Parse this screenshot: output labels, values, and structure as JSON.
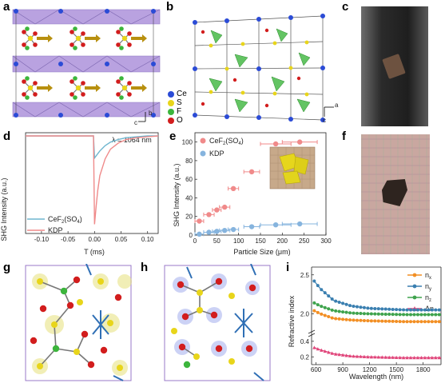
{
  "panel_labels": {
    "a": "a",
    "b": "b",
    "c": "c",
    "d": "d",
    "e": "e",
    "f": "f",
    "g": "g",
    "h": "h",
    "i": "i"
  },
  "axes_a": {
    "b": "b",
    "c": "c"
  },
  "axes_b": {
    "a": "a",
    "c": "c"
  },
  "legend_b": [
    {
      "label": "Ce",
      "color": "#2b4bd6"
    },
    {
      "label": "S",
      "color": "#e8d51a"
    },
    {
      "label": "F",
      "color": "#3cb53c"
    },
    {
      "label": "O",
      "color": "#d21d1d"
    }
  ],
  "colors": {
    "ce": "#2b4bd6",
    "s": "#e8d51a",
    "f": "#3cb53c",
    "o": "#d21d1d",
    "polyhedra": "#b9a2e0",
    "arrow": "#b8900f",
    "cef2": "#6fb6cf",
    "kdp": "#ef8a8a",
    "pink_e": "#f08a8a",
    "blue_e": "#86b4de"
  },
  "chart_data": [
    {
      "type": "line",
      "panel": "d",
      "xlabel": "T (ms)",
      "ylabel": "SHG Intensity (a.u.)",
      "xlim": [
        -0.13,
        0.12
      ],
      "xticks": [
        -0.1,
        -0.05,
        0.0,
        0.05,
        0.1
      ],
      "xtick_labels": [
        "-0.10",
        "-0.05",
        "0.00",
        "0.05",
        "0.10"
      ],
      "annotation": "λ = 1064 nm",
      "series": [
        {
          "name": "CeF2(SO4)",
          "name_main": "CeF",
          "name_sub": "2",
          "name_tail": "(SO",
          "name_sub2": "4",
          "name_end": ")",
          "color": "#6fb6cf",
          "x": [
            -0.13,
            -0.002,
            0.0,
            0.005,
            0.01,
            0.02,
            0.03,
            0.045,
            0.06,
            0.08,
            0.1,
            0.12
          ],
          "y": [
            0.0,
            0.0,
            -0.25,
            -0.21,
            -0.17,
            -0.11,
            -0.07,
            -0.04,
            -0.02,
            -0.01,
            0.0,
            0.0
          ]
        },
        {
          "name": "KDP",
          "color": "#ef8a8a",
          "x": [
            -0.13,
            -0.002,
            0.0,
            0.003,
            0.006,
            0.01,
            0.02,
            0.03,
            0.045,
            0.06,
            0.08,
            0.1,
            0.12
          ],
          "y": [
            0.0,
            0.0,
            -1.0,
            -0.8,
            -0.62,
            -0.45,
            -0.26,
            -0.15,
            -0.08,
            -0.04,
            -0.02,
            -0.01,
            0.0
          ]
        }
      ]
    },
    {
      "type": "scatter",
      "panel": "e",
      "xlabel": "Particle Size (μm)",
      "ylabel": "SHG Intensity (a.u.)",
      "xlim": [
        0,
        300
      ],
      "ylim": [
        0,
        110
      ],
      "xticks": [
        0,
        50,
        100,
        150,
        200,
        250,
        300
      ],
      "yticks": [
        0,
        20,
        40,
        60,
        80,
        100
      ],
      "series": [
        {
          "name": "CeF2(SO4)",
          "name_main": "CeF",
          "name_sub": "2",
          "name_tail": "(SO",
          "name_sub2": "4",
          "name_end": ")",
          "color": "#f08a8a",
          "x": [
            10,
            32,
            50,
            68,
            88,
            130,
            185,
            240
          ],
          "y": [
            15,
            22,
            27,
            30,
            50,
            68,
            98,
            100
          ],
          "xerr": [
            10,
            12,
            10,
            12,
            12,
            18,
            35,
            40
          ]
        },
        {
          "name": "KDP",
          "color": "#86b4de",
          "x": [
            10,
            32,
            50,
            68,
            88,
            130,
            185,
            240
          ],
          "y": [
            1,
            3,
            4,
            5,
            6,
            9,
            11,
            12
          ],
          "xerr": [
            10,
            12,
            10,
            12,
            12,
            18,
            35,
            40
          ]
        }
      ]
    },
    {
      "type": "line",
      "panel": "i",
      "xlabel": "Wavelength (nm)",
      "ylabel": "Refractive index",
      "xlim": [
        550,
        2000
      ],
      "xticks": [
        600,
        900,
        1200,
        1500,
        1800
      ],
      "ytick_upper": [
        "2.0",
        "2.5"
      ],
      "ytick_lower": [
        "0.2",
        "0.4"
      ],
      "series": [
        {
          "name": "nx",
          "name_main": "n",
          "name_sub": "x",
          "color": "#f28f24",
          "x": [
            580,
            650,
            800,
            1000,
            1200,
            1400,
            1600,
            1800,
            2000
          ],
          "y": [
            2.04,
            2.0,
            1.94,
            1.92,
            1.91,
            1.905,
            1.9,
            1.9,
            1.9
          ]
        },
        {
          "name": "ny",
          "name_main": "n",
          "name_sub": "y",
          "color": "#3a7fb0",
          "x": [
            580,
            650,
            800,
            1000,
            1200,
            1400,
            1600,
            1800,
            2000
          ],
          "y": [
            2.42,
            2.32,
            2.17,
            2.1,
            2.07,
            2.06,
            2.05,
            2.05,
            2.05
          ]
        },
        {
          "name": "nz",
          "name_main": "n",
          "name_sub": "z",
          "color": "#3fa34d",
          "x": [
            580,
            650,
            800,
            1000,
            1200,
            1400,
            1600,
            1800,
            2000
          ],
          "y": [
            2.14,
            2.1,
            2.04,
            2.01,
            2.0,
            1.995,
            1.99,
            1.99,
            1.99
          ]
        },
        {
          "name": "Δn",
          "color": "#e0457a",
          "x": [
            580,
            650,
            800,
            1000,
            1200,
            1400,
            1600,
            1800,
            2000
          ],
          "y": [
            0.32,
            0.29,
            0.24,
            0.21,
            0.2,
            0.195,
            0.19,
            0.19,
            0.19
          ]
        }
      ]
    }
  ]
}
